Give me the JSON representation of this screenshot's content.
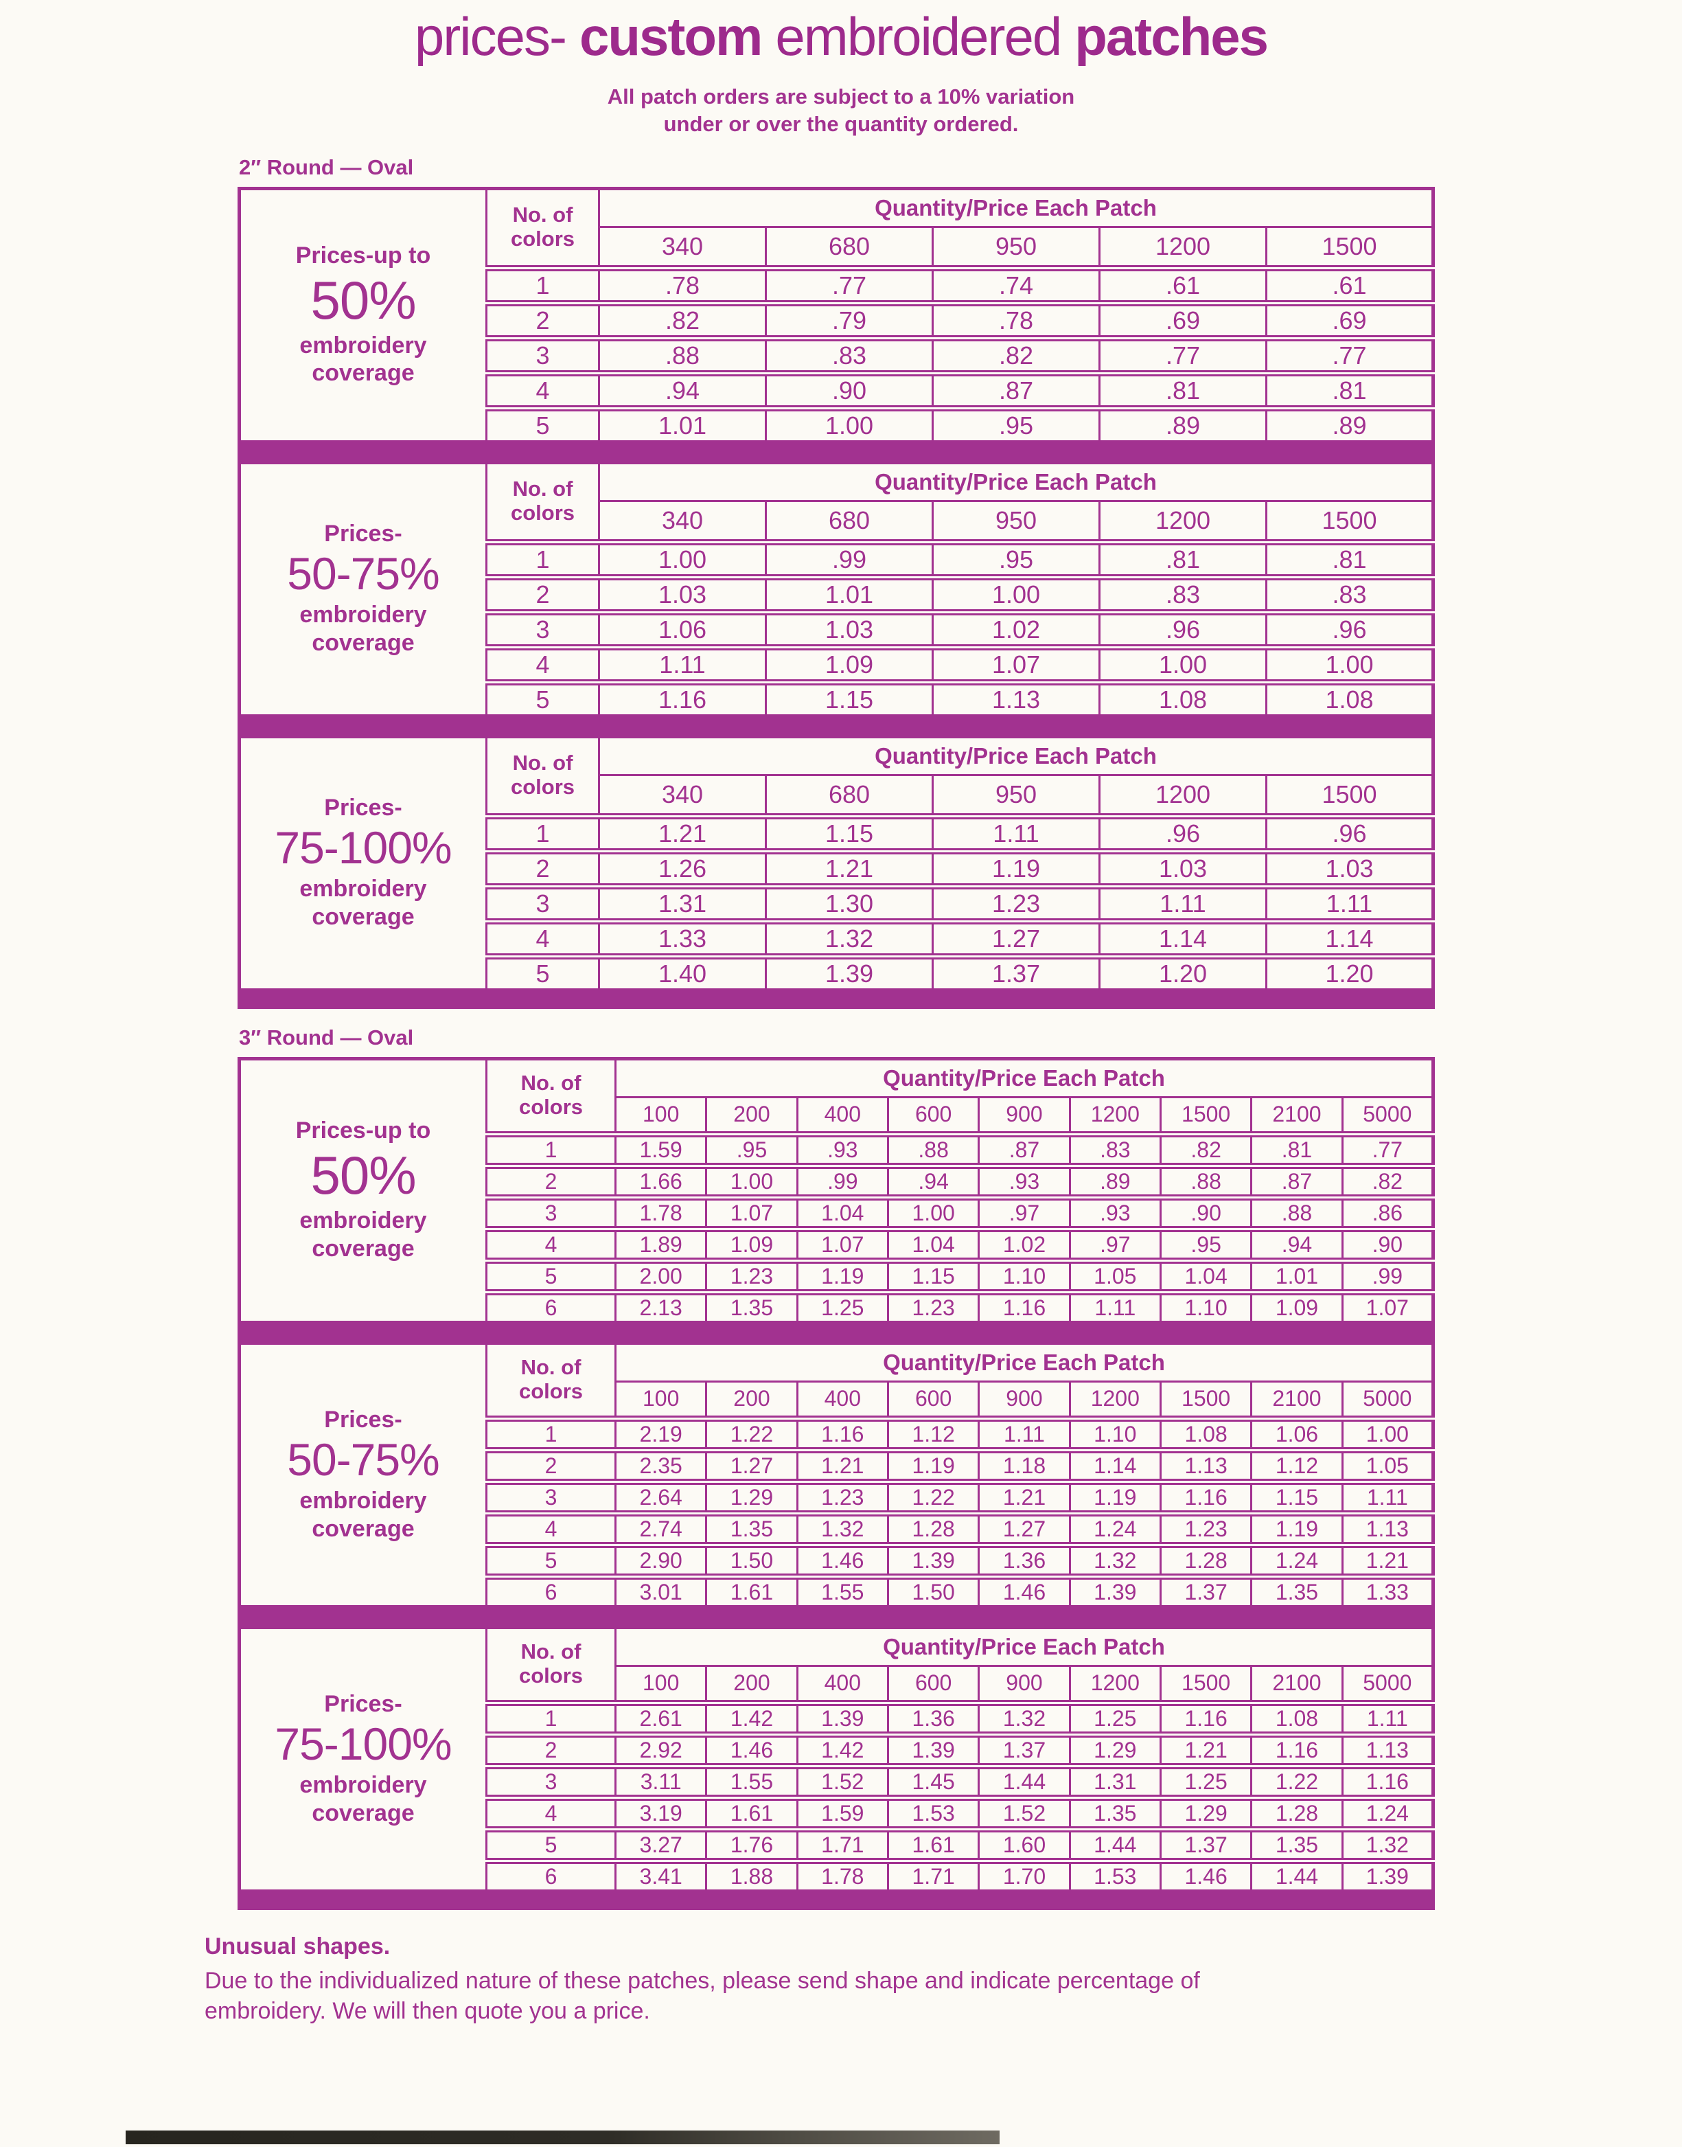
{
  "theme": {
    "accent_color": "#a23290",
    "title_color": "#9d2a8c",
    "page_background": "#fcfaf5"
  },
  "header": {
    "title": {
      "p1": "prices-",
      "p2": "custom",
      "p3": "embroidered",
      "p4": "patches"
    },
    "note_line1": "All patch orders are subject to a 10% variation",
    "note_line2": "under or over the quantity ordered."
  },
  "sections": [
    {
      "label": "2″ Round — Oval",
      "colors_header_line1": "No. of",
      "colors_header_line2": "colors",
      "qty_header": "Quantity/Price Each Patch",
      "quantities": [
        "340",
        "680",
        "950",
        "1200",
        "1500"
      ],
      "tables": [
        {
          "coverage": {
            "intro": "Prices-up to",
            "percent": "50%",
            "word1": "embroidery",
            "word2": "coverage"
          },
          "rows": [
            {
              "colors": "1",
              "prices": [
                ".78",
                ".77",
                ".74",
                ".61",
                ".61"
              ]
            },
            {
              "colors": "2",
              "prices": [
                ".82",
                ".79",
                ".78",
                ".69",
                ".69"
              ]
            },
            {
              "colors": "3",
              "prices": [
                ".88",
                ".83",
                ".82",
                ".77",
                ".77"
              ]
            },
            {
              "colors": "4",
              "prices": [
                ".94",
                ".90",
                ".87",
                ".81",
                ".81"
              ]
            },
            {
              "colors": "5",
              "prices": [
                "1.01",
                "1.00",
                ".95",
                ".89",
                ".89"
              ]
            }
          ]
        },
        {
          "coverage": {
            "intro": "Prices-",
            "percent": "50-75%",
            "word1": "embroidery",
            "word2": "coverage"
          },
          "rows": [
            {
              "colors": "1",
              "prices": [
                "1.00",
                ".99",
                ".95",
                ".81",
                ".81"
              ]
            },
            {
              "colors": "2",
              "prices": [
                "1.03",
                "1.01",
                "1.00",
                ".83",
                ".83"
              ]
            },
            {
              "colors": "3",
              "prices": [
                "1.06",
                "1.03",
                "1.02",
                ".96",
                ".96"
              ]
            },
            {
              "colors": "4",
              "prices": [
                "1.11",
                "1.09",
                "1.07",
                "1.00",
                "1.00"
              ]
            },
            {
              "colors": "5",
              "prices": [
                "1.16",
                "1.15",
                "1.13",
                "1.08",
                "1.08"
              ]
            }
          ]
        },
        {
          "coverage": {
            "intro": "Prices-",
            "percent": "75-100%",
            "word1": "embroidery",
            "word2": "coverage"
          },
          "rows": [
            {
              "colors": "1",
              "prices": [
                "1.21",
                "1.15",
                "1.11",
                ".96",
                ".96"
              ]
            },
            {
              "colors": "2",
              "prices": [
                "1.26",
                "1.21",
                "1.19",
                "1.03",
                "1.03"
              ]
            },
            {
              "colors": "3",
              "prices": [
                "1.31",
                "1.30",
                "1.23",
                "1.11",
                "1.11"
              ]
            },
            {
              "colors": "4",
              "prices": [
                "1.33",
                "1.32",
                "1.27",
                "1.14",
                "1.14"
              ]
            },
            {
              "colors": "5",
              "prices": [
                "1.40",
                "1.39",
                "1.37",
                "1.20",
                "1.20"
              ]
            }
          ]
        }
      ]
    },
    {
      "label": "3″ Round — Oval",
      "colors_header_line1": "No. of",
      "colors_header_line2": "colors",
      "qty_header": "Quantity/Price Each Patch",
      "quantities": [
        "100",
        "200",
        "400",
        "600",
        "900",
        "1200",
        "1500",
        "2100",
        "5000"
      ],
      "tables": [
        {
          "coverage": {
            "intro": "Prices-up to",
            "percent": "50%",
            "word1": "embroidery",
            "word2": "coverage"
          },
          "rows": [
            {
              "colors": "1",
              "prices": [
                "1.59",
                ".95",
                ".93",
                ".88",
                ".87",
                ".83",
                ".82",
                ".81",
                ".77"
              ]
            },
            {
              "colors": "2",
              "prices": [
                "1.66",
                "1.00",
                ".99",
                ".94",
                ".93",
                ".89",
                ".88",
                ".87",
                ".82"
              ]
            },
            {
              "colors": "3",
              "prices": [
                "1.78",
                "1.07",
                "1.04",
                "1.00",
                ".97",
                ".93",
                ".90",
                ".88",
                ".86"
              ]
            },
            {
              "colors": "4",
              "prices": [
                "1.89",
                "1.09",
                "1.07",
                "1.04",
                "1.02",
                ".97",
                ".95",
                ".94",
                ".90"
              ]
            },
            {
              "colors": "5",
              "prices": [
                "2.00",
                "1.23",
                "1.19",
                "1.15",
                "1.10",
                "1.05",
                "1.04",
                "1.01",
                ".99"
              ]
            },
            {
              "colors": "6",
              "prices": [
                "2.13",
                "1.35",
                "1.25",
                "1.23",
                "1.16",
                "1.11",
                "1.10",
                "1.09",
                "1.07"
              ]
            }
          ]
        },
        {
          "coverage": {
            "intro": "Prices-",
            "percent": "50-75%",
            "word1": "embroidery",
            "word2": "coverage"
          },
          "rows": [
            {
              "colors": "1",
              "prices": [
                "2.19",
                "1.22",
                "1.16",
                "1.12",
                "1.11",
                "1.10",
                "1.08",
                "1.06",
                "1.00"
              ]
            },
            {
              "colors": "2",
              "prices": [
                "2.35",
                "1.27",
                "1.21",
                "1.19",
                "1.18",
                "1.14",
                "1.13",
                "1.12",
                "1.05"
              ]
            },
            {
              "colors": "3",
              "prices": [
                "2.64",
                "1.29",
                "1.23",
                "1.22",
                "1.21",
                "1.19",
                "1.16",
                "1.15",
                "1.11"
              ]
            },
            {
              "colors": "4",
              "prices": [
                "2.74",
                "1.35",
                "1.32",
                "1.28",
                "1.27",
                "1.24",
                "1.23",
                "1.19",
                "1.13"
              ]
            },
            {
              "colors": "5",
              "prices": [
                "2.90",
                "1.50",
                "1.46",
                "1.39",
                "1.36",
                "1.32",
                "1.28",
                "1.24",
                "1.21"
              ]
            },
            {
              "colors": "6",
              "prices": [
                "3.01",
                "1.61",
                "1.55",
                "1.50",
                "1.46",
                "1.39",
                "1.37",
                "1.35",
                "1.33"
              ]
            }
          ]
        },
        {
          "coverage": {
            "intro": "Prices-",
            "percent": "75-100%",
            "word1": "embroidery",
            "word2": "coverage"
          },
          "rows": [
            {
              "colors": "1",
              "prices": [
                "2.61",
                "1.42",
                "1.39",
                "1.36",
                "1.32",
                "1.25",
                "1.16",
                "1.08",
                "1.11"
              ]
            },
            {
              "colors": "2",
              "prices": [
                "2.92",
                "1.46",
                "1.42",
                "1.39",
                "1.37",
                "1.29",
                "1.21",
                "1.16",
                "1.13"
              ]
            },
            {
              "colors": "3",
              "prices": [
                "3.11",
                "1.55",
                "1.52",
                "1.45",
                "1.44",
                "1.31",
                "1.25",
                "1.22",
                "1.16"
              ]
            },
            {
              "colors": "4",
              "prices": [
                "3.19",
                "1.61",
                "1.59",
                "1.53",
                "1.52",
                "1.35",
                "1.29",
                "1.28",
                "1.24"
              ]
            },
            {
              "colors": "5",
              "prices": [
                "3.27",
                "1.76",
                "1.71",
                "1.61",
                "1.60",
                "1.44",
                "1.37",
                "1.35",
                "1.32"
              ]
            },
            {
              "colors": "6",
              "prices": [
                "3.41",
                "1.88",
                "1.78",
                "1.71",
                "1.70",
                "1.53",
                "1.46",
                "1.44",
                "1.39"
              ]
            }
          ]
        }
      ]
    }
  ],
  "footer": {
    "heading": "Unusual shapes.",
    "body_line1": "Due to the individualized nature of these patches, please send shape and indicate percentage of",
    "body_line2": "embroidery. We will then quote you a price."
  }
}
